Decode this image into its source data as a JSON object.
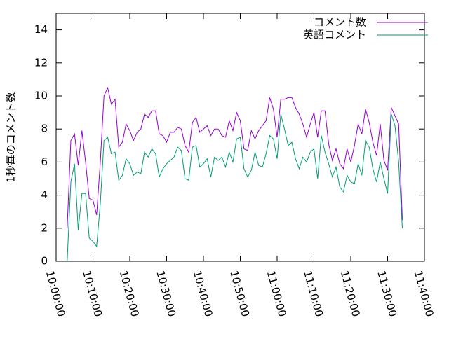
{
  "chart_data": {
    "type": "line",
    "ylabel": "1秒毎のコメント数",
    "x": [
      "10:03:00",
      "10:04:00",
      "10:05:00",
      "10:06:00",
      "10:07:00",
      "10:08:00",
      "10:09:00",
      "10:10:00",
      "10:11:00",
      "10:12:00",
      "10:13:00",
      "10:14:00",
      "10:15:00",
      "10:16:00",
      "10:17:00",
      "10:18:00",
      "10:19:00",
      "10:20:00",
      "10:21:00",
      "10:22:00",
      "10:23:00",
      "10:24:00",
      "10:25:00",
      "10:26:00",
      "10:27:00",
      "10:28:00",
      "10:29:00",
      "10:30:00",
      "10:31:00",
      "10:32:00",
      "10:33:00",
      "10:34:00",
      "10:35:00",
      "10:36:00",
      "10:37:00",
      "10:38:00",
      "10:39:00",
      "10:40:00",
      "10:41:00",
      "10:42:00",
      "10:43:00",
      "10:44:00",
      "10:45:00",
      "10:46:00",
      "10:47:00",
      "10:48:00",
      "10:49:00",
      "10:50:00",
      "10:51:00",
      "10:52:00",
      "10:53:00",
      "10:54:00",
      "10:55:00",
      "10:56:00",
      "10:57:00",
      "10:58:00",
      "10:59:00",
      "11:00:00",
      "11:01:00",
      "11:02:00",
      "11:03:00",
      "11:04:00",
      "11:05:00",
      "11:06:00",
      "11:07:00",
      "11:08:00",
      "11:09:00",
      "11:10:00",
      "11:11:00",
      "11:12:00",
      "11:13:00",
      "11:14:00",
      "11:15:00",
      "11:16:00",
      "11:17:00",
      "11:18:00",
      "11:19:00",
      "11:20:00",
      "11:21:00",
      "11:22:00",
      "11:23:00",
      "11:24:00",
      "11:25:00",
      "11:26:00",
      "11:27:00",
      "11:28:00",
      "11:29:00",
      "11:30:00",
      "11:31:00",
      "11:32:00",
      "11:33:00",
      "11:34:00"
    ],
    "series": [
      {
        "name": "コメント数",
        "color": "#9400d3",
        "values": [
          2.0,
          7.3,
          7.7,
          5.8,
          7.9,
          6.0,
          3.8,
          3.7,
          2.8,
          6.0,
          10.0,
          10.5,
          9.5,
          9.8,
          6.9,
          7.2,
          8.3,
          7.9,
          7.3,
          7.8,
          8.0,
          8.9,
          8.7,
          9.1,
          9.1,
          7.7,
          7.6,
          7.2,
          7.8,
          7.8,
          8.1,
          8.0,
          7.0,
          6.6,
          8.4,
          8.7,
          7.8,
          8.0,
          8.2,
          7.6,
          8.0,
          8.0,
          7.6,
          7.5,
          8.5,
          7.9,
          9.0,
          8.5,
          6.8,
          6.7,
          7.9,
          7.4,
          7.9,
          8.2,
          8.5,
          9.9,
          9.2,
          7.5,
          9.8,
          9.8,
          9.9,
          9.9,
          9.3,
          8.9,
          8.3,
          7.5,
          8.3,
          9.0,
          7.5,
          9.1,
          9.1,
          7.1,
          6.1,
          6.8,
          5.9,
          5.6,
          6.8,
          6.0,
          7.0,
          8.3,
          7.7,
          9.2,
          8.4,
          7.2,
          6.4,
          8.3,
          6.1,
          5.5,
          9.3,
          8.8,
          8.3,
          2.5
        ]
      },
      {
        "name": "英語コメント",
        "color": "#009e73",
        "values": [
          0,
          4.8,
          5.9,
          1.9,
          4.1,
          4.1,
          1.4,
          1.2,
          0.9,
          3.5,
          7.3,
          7.5,
          6.5,
          6.6,
          4.9,
          5.2,
          6.2,
          5.9,
          5.2,
          5.4,
          5.3,
          6.6,
          6.3,
          6.8,
          6.5,
          5.1,
          5.6,
          5.9,
          6.1,
          6.3,
          6.9,
          6.7,
          5.0,
          4.9,
          6.9,
          7.0,
          5.7,
          5.9,
          6.2,
          5.1,
          6.3,
          6.1,
          6.3,
          5.7,
          6.6,
          6.0,
          7.4,
          7.5,
          5.6,
          5.1,
          5.5,
          6.6,
          5.8,
          5.7,
          6.5,
          7.6,
          7.4,
          6.2,
          8.9,
          8.0,
          7.0,
          7.2,
          6.2,
          5.6,
          6.3,
          6.0,
          6.6,
          6.8,
          5.0,
          7.6,
          6.6,
          5.9,
          5.1,
          5.7,
          4.5,
          4.2,
          5.2,
          4.8,
          4.7,
          5.9,
          5.2,
          7.3,
          6.9,
          5.6,
          4.8,
          6.0,
          5.0,
          4.1,
          8.9,
          8.2,
          6.0,
          2.0
        ]
      }
    ],
    "xlim": [
      "10:00:00",
      "11:40:00"
    ],
    "xticks": [
      "10:00:00",
      "10:10:00",
      "10:20:00",
      "10:30:00",
      "10:40:00",
      "10:50:00",
      "11:00:00",
      "11:10:00",
      "11:20:00",
      "11:30:00",
      "11:40:00"
    ],
    "ylim": [
      0,
      15
    ],
    "yticks": [
      0,
      2,
      4,
      6,
      8,
      10,
      12,
      14
    ],
    "legend": "top-right"
  }
}
